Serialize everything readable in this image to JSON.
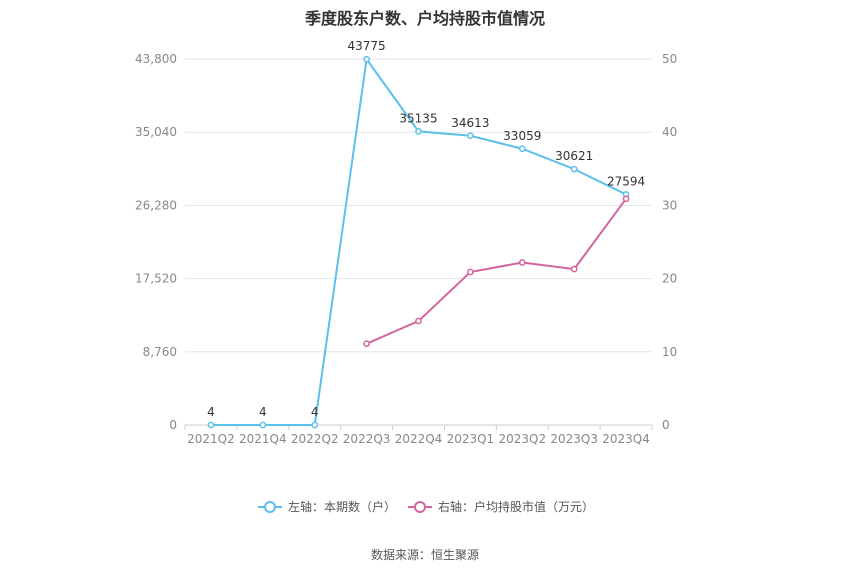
{
  "chart_data": {
    "type": "line",
    "title": "季度股东户数、户均持股市值情况",
    "source": "数据来源：恒生聚源",
    "categories": [
      "2021Q2",
      "2021Q4",
      "2022Q2",
      "2022Q3",
      "2022Q4",
      "2023Q1",
      "2023Q2",
      "2023Q3",
      "2023Q4"
    ],
    "left_axis": {
      "min": 0,
      "max": 43800,
      "ticks": [
        "0",
        "8,760",
        "17,520",
        "26,280",
        "35,040",
        "43,800"
      ]
    },
    "right_axis": {
      "min": 0,
      "max": 50,
      "ticks": [
        "0",
        "10",
        "20",
        "30",
        "40",
        "50"
      ]
    },
    "series": [
      {
        "name": "左轴：本期数（户）",
        "axis": "left",
        "color": "#5bc0eb",
        "values": [
          4,
          4,
          4,
          43775,
          35135,
          34613,
          33059,
          30621,
          27594
        ],
        "labels": [
          "4",
          "4",
          "4",
          "43775",
          "35135",
          "34613",
          "33059",
          "30621",
          "27594"
        ]
      },
      {
        "name": "右轴：户均持股市值（万元）",
        "axis": "right",
        "color": "#d4649f",
        "values": [
          null,
          null,
          null,
          11.1,
          14.2,
          20.9,
          22.2,
          21.3,
          30.9
        ]
      }
    ],
    "grid": true,
    "legend_position": "bottom-center"
  }
}
